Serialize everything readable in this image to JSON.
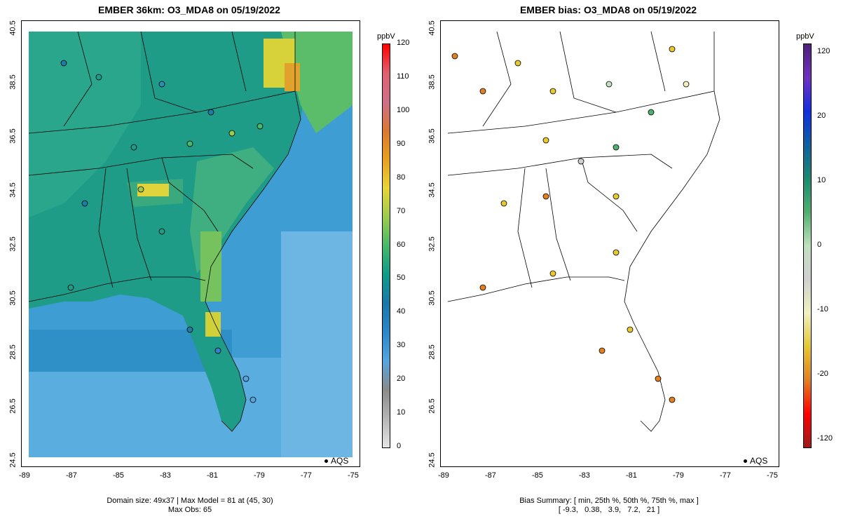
{
  "left_panel": {
    "title": "EMBER 36km: O3_MDA8 on 05/19/2022",
    "footer_line1": "Domain size: 49x37 | Max Model = 81 at (45, 30)",
    "footer_line2": "Max Obs: 65",
    "legend_label": "AQS",
    "colorbar_unit": "ppbV",
    "colorbar_ticks": [
      "0",
      "10",
      "20",
      "30",
      "40",
      "50",
      "60",
      "70",
      "80",
      "90",
      "100",
      "110",
      "120"
    ],
    "colorbar_stops": [
      "#e5e5e5",
      "#b5b5b5",
      "#8a8a8a",
      "#56a5dc",
      "#2c86c8",
      "#1b77a7",
      "#0f9a88",
      "#48b86a",
      "#9ccc4e",
      "#e6d53a",
      "#e6a020",
      "#d97835",
      "#cc6f8a",
      "#e06070",
      "#ff0000"
    ]
  },
  "right_panel": {
    "title": "EMBER bias: O3_MDA8 on 05/19/2022",
    "footer_line1": "Bias Summary: [ min, 25th %, 50th %, 75th %, max ]",
    "footer_line2": "[ -9.3,   0.38,   3.9,   7.2,   21 ]",
    "legend_label": "AQS",
    "colorbar_unit": "ppbV",
    "colorbar_ticks": [
      "120",
      "20",
      "10",
      "0",
      "-10",
      "-20",
      "-120"
    ],
    "colorbar_stops": [
      "#9b1c1c",
      "#ff0000",
      "#e08020",
      "#e6c830",
      "#f0f0c0",
      "#d0d0d0",
      "#c0e0c0",
      "#50b070",
      "#1a8a70",
      "#1060a0",
      "#1030e0",
      "#7030c0",
      "#50207a"
    ]
  },
  "x_ticks": [
    "-89",
    "-87",
    "-85",
    "-83",
    "-81",
    "-79",
    "-77",
    "-75"
  ],
  "y_ticks": [
    "24.5",
    "26.5",
    "28.5",
    "30.5",
    "32.5",
    "34.5",
    "36.5",
    "38.5",
    "40.5"
  ],
  "colors": {
    "ocean": "#56a8dc",
    "land_base": "#1a9a86"
  }
}
